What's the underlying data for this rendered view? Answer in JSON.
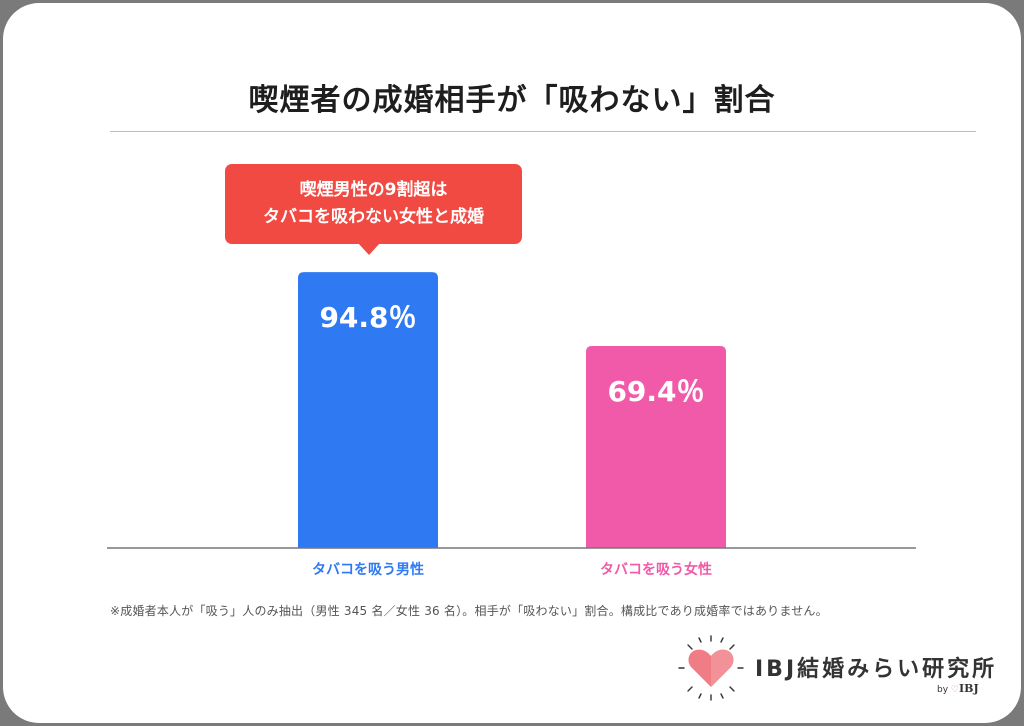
{
  "colors": {
    "male": "#2f7af2",
    "female": "#f05aa8",
    "callout": "#f04a43",
    "axis": "#777777",
    "label_text": "#ffffff",
    "logo_heart": "#f07c86"
  },
  "header": {
    "title": "喫煙者の成婚相手が「吸わない」割合"
  },
  "callout": {
    "line1": "喫煙男性の9割超は",
    "line2": "タバコを吸わない女性と成婚"
  },
  "chart_data": {
    "type": "bar",
    "categories": [
      "タバコを吸う男性",
      "タバコを吸う女性"
    ],
    "values": [
      94.8,
      69.4
    ],
    "value_labels": [
      "94.8％",
      "69.4％"
    ],
    "ylim": [
      0,
      100
    ],
    "title": "喫煙者の成婚相手が「吸わない」割合",
    "xlabel": "",
    "ylabel": "",
    "grid": false
  },
  "footnote": "※成婚者本人が「吸う」人のみ抽出（男性 345 名／女性 36 名）。相手が「吸わない」割合。構成比であり成婚率ではありません。",
  "logo": {
    "name": "IBJ結婚みらい研究所",
    "by_prefix": "by",
    "by_brand": "IBJ",
    "icon": "heart-icon"
  }
}
